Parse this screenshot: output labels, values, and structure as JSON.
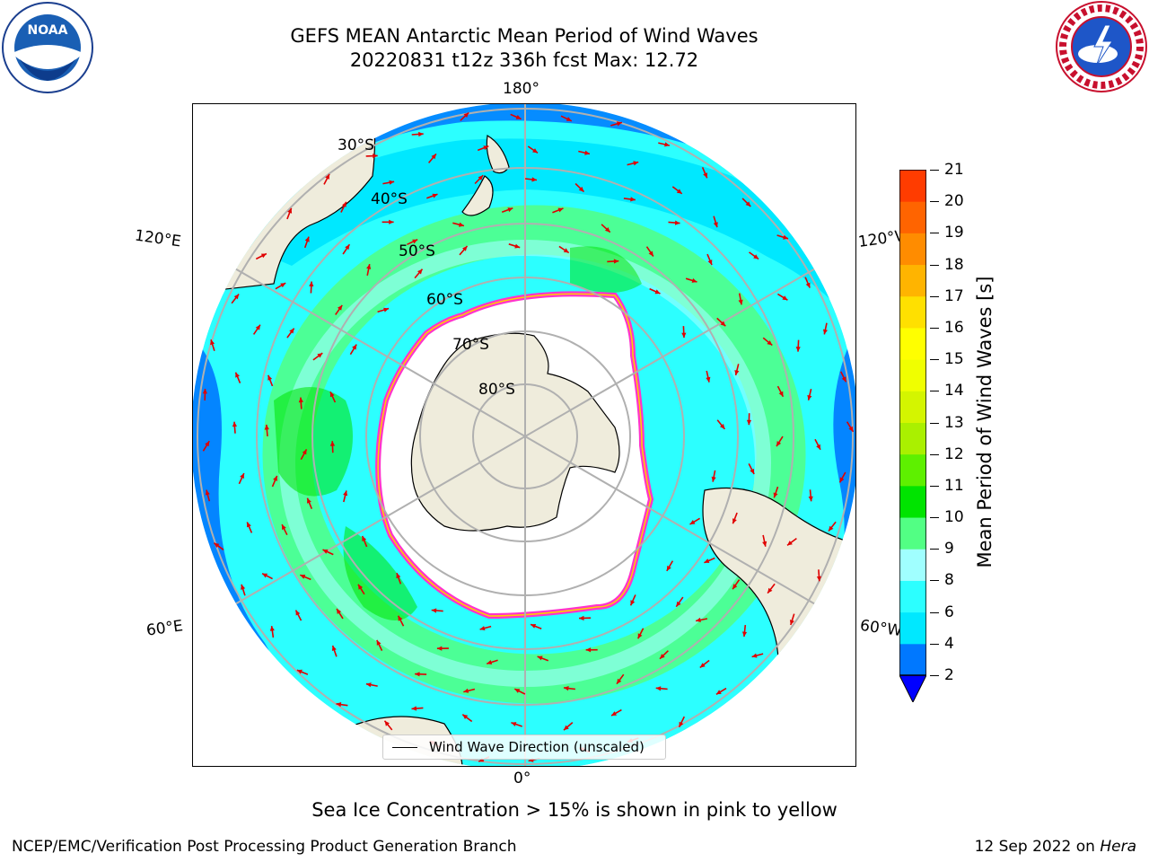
{
  "title": {
    "line1": "GEFS MEAN Antarctic Mean Period of Wind Waves",
    "line2": "20220831 t12z 336h fcst   Max: 12.72"
  },
  "logos": {
    "left": "noaa-logo",
    "right": "national-weather-service-logo"
  },
  "map": {
    "projection": "south-polar-stereographic",
    "longitude_labels": {
      "top": "180°",
      "bottom": "0°",
      "upper_left": "120°E",
      "upper_right": "120°W",
      "lower_left": "60°E",
      "lower_right": "60°W"
    },
    "latitude_labels": [
      "30°S",
      "40°S",
      "50°S",
      "60°S",
      "70°S",
      "80°S"
    ],
    "legend": "Wind Wave Direction (unscaled)",
    "colors": {
      "land": "#efecdc",
      "ice_free_open_water_low": "#00ffff",
      "arrow": "#e00000",
      "grid": "#b0b0b0",
      "sea_ice_edge": "#ff33cc"
    }
  },
  "colorbar": {
    "label": "Mean Period of Wind Waves [s]",
    "ticks": [
      "2",
      "4",
      "6",
      "8",
      "9",
      "10",
      "11",
      "12",
      "13",
      "14",
      "15",
      "16",
      "17",
      "18",
      "19",
      "20",
      "21"
    ],
    "colors": [
      "#0078ff",
      "#00e8ff",
      "#2cffff",
      "#a0ffff",
      "#52ff84",
      "#00e400",
      "#5ef000",
      "#aaf000",
      "#d4f500",
      "#f0ff00",
      "#ffff00",
      "#ffe000",
      "#ffb400",
      "#ff8c00",
      "#ff6400",
      "#ff3c00",
      "#ff0000"
    ],
    "extend_below_color": "#0000ff"
  },
  "note": "Sea Ice Concentration > 15% is shown in pink to yellow",
  "footer": {
    "left": "NCEP/EMC/Verification Post Processing Product Generation Branch",
    "right_date": "12 Sep 2022 on ",
    "right_machine": "Hera"
  }
}
